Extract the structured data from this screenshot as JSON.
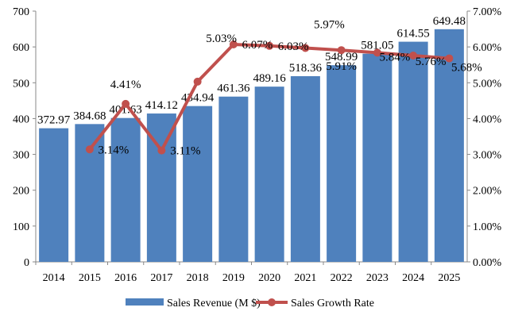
{
  "chart_data": {
    "type": "bar",
    "categories": [
      "2014",
      "2015",
      "2016",
      "2017",
      "2018",
      "2019",
      "2020",
      "2021",
      "2022",
      "2023",
      "2024",
      "2025"
    ],
    "series": [
      {
        "name": "Sales Revenue (M $)",
        "type": "bar",
        "axis": "left",
        "color": "#4F81BD",
        "values": [
          372.97,
          384.68,
          401.63,
          414.12,
          434.94,
          461.36,
          489.16,
          518.36,
          548.99,
          581.05,
          614.55,
          649.48
        ],
        "labels": [
          "372.97",
          "384.68",
          "401.63",
          "414.12",
          "434.94",
          "461.36",
          "489.16",
          "518.36",
          "548.99",
          "581.05",
          "614.55",
          "649.48"
        ]
      },
      {
        "name": "Sales Growth Rate",
        "type": "line",
        "axis": "right",
        "color": "#C0504D",
        "values": [
          null,
          3.14,
          4.41,
          3.11,
          5.03,
          6.07,
          6.03,
          5.97,
          5.91,
          5.84,
          5.76,
          5.68
        ],
        "labels": [
          "",
          "3.14%",
          "4.41%",
          "3.11%",
          "5.03%",
          "6.07%",
          "6.03%",
          "5.97%",
          "5.91%",
          "5.84%",
          "5.76%",
          "5.68%"
        ]
      }
    ],
    "left_axis": {
      "ylim": [
        0,
        700
      ],
      "ticks": [
        "0",
        "100",
        "200",
        "300",
        "400",
        "500",
        "600",
        "700"
      ]
    },
    "right_axis": {
      "ylim": [
        0,
        7
      ],
      "ticks": [
        "0.00%",
        "1.00%",
        "2.00%",
        "3.00%",
        "4.00%",
        "5.00%",
        "6.00%",
        "7.00%"
      ]
    },
    "legend": {
      "position": "bottom",
      "items": [
        "Sales Revenue (M $)",
        "Sales Growth Rate"
      ]
    },
    "grid": false
  }
}
